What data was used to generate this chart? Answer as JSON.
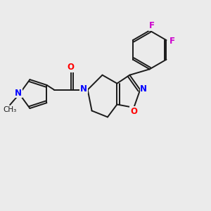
{
  "background_color": "#ebebeb",
  "bond_color": "#1a1a1a",
  "atom_colors": {
    "N": "#0000ff",
    "O": "#ff0000",
    "F": "#cc00cc",
    "C": "#1a1a1a"
  },
  "fig_width": 3.0,
  "fig_height": 3.0,
  "dpi": 100
}
